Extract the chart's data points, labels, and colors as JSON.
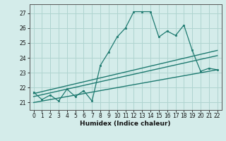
{
  "xlabel": "Humidex (Indice chaleur)",
  "xlim": [
    -0.5,
    22.5
  ],
  "ylim": [
    20.5,
    27.6
  ],
  "yticks": [
    21,
    22,
    23,
    24,
    25,
    26,
    27
  ],
  "xticks": [
    0,
    1,
    2,
    3,
    4,
    5,
    6,
    7,
    8,
    9,
    10,
    11,
    12,
    13,
    14,
    15,
    16,
    17,
    18,
    19,
    20,
    21,
    22
  ],
  "bg_color": "#d4ecea",
  "grid_color": "#afd4d0",
  "line_color": "#1e7a70",
  "line1_x": [
    0,
    1,
    2,
    3,
    4,
    5,
    6,
    7,
    8,
    9,
    10,
    11,
    12,
    13,
    14,
    15,
    16,
    17,
    18,
    19,
    20,
    21,
    22
  ],
  "line1_y": [
    21.7,
    21.2,
    21.5,
    21.1,
    21.9,
    21.4,
    21.8,
    21.1,
    23.5,
    24.4,
    25.4,
    26.0,
    27.1,
    27.1,
    27.1,
    25.4,
    25.8,
    25.5,
    26.2,
    24.5,
    23.1,
    23.3,
    23.2
  ],
  "trend1_x": [
    0,
    22
  ],
  "trend1_y": [
    21.6,
    24.5
  ],
  "trend2_x": [
    0,
    22
  ],
  "trend2_y": [
    21.4,
    24.15
  ],
  "trend3_x": [
    0,
    22
  ],
  "trend3_y": [
    21.0,
    23.2
  ]
}
